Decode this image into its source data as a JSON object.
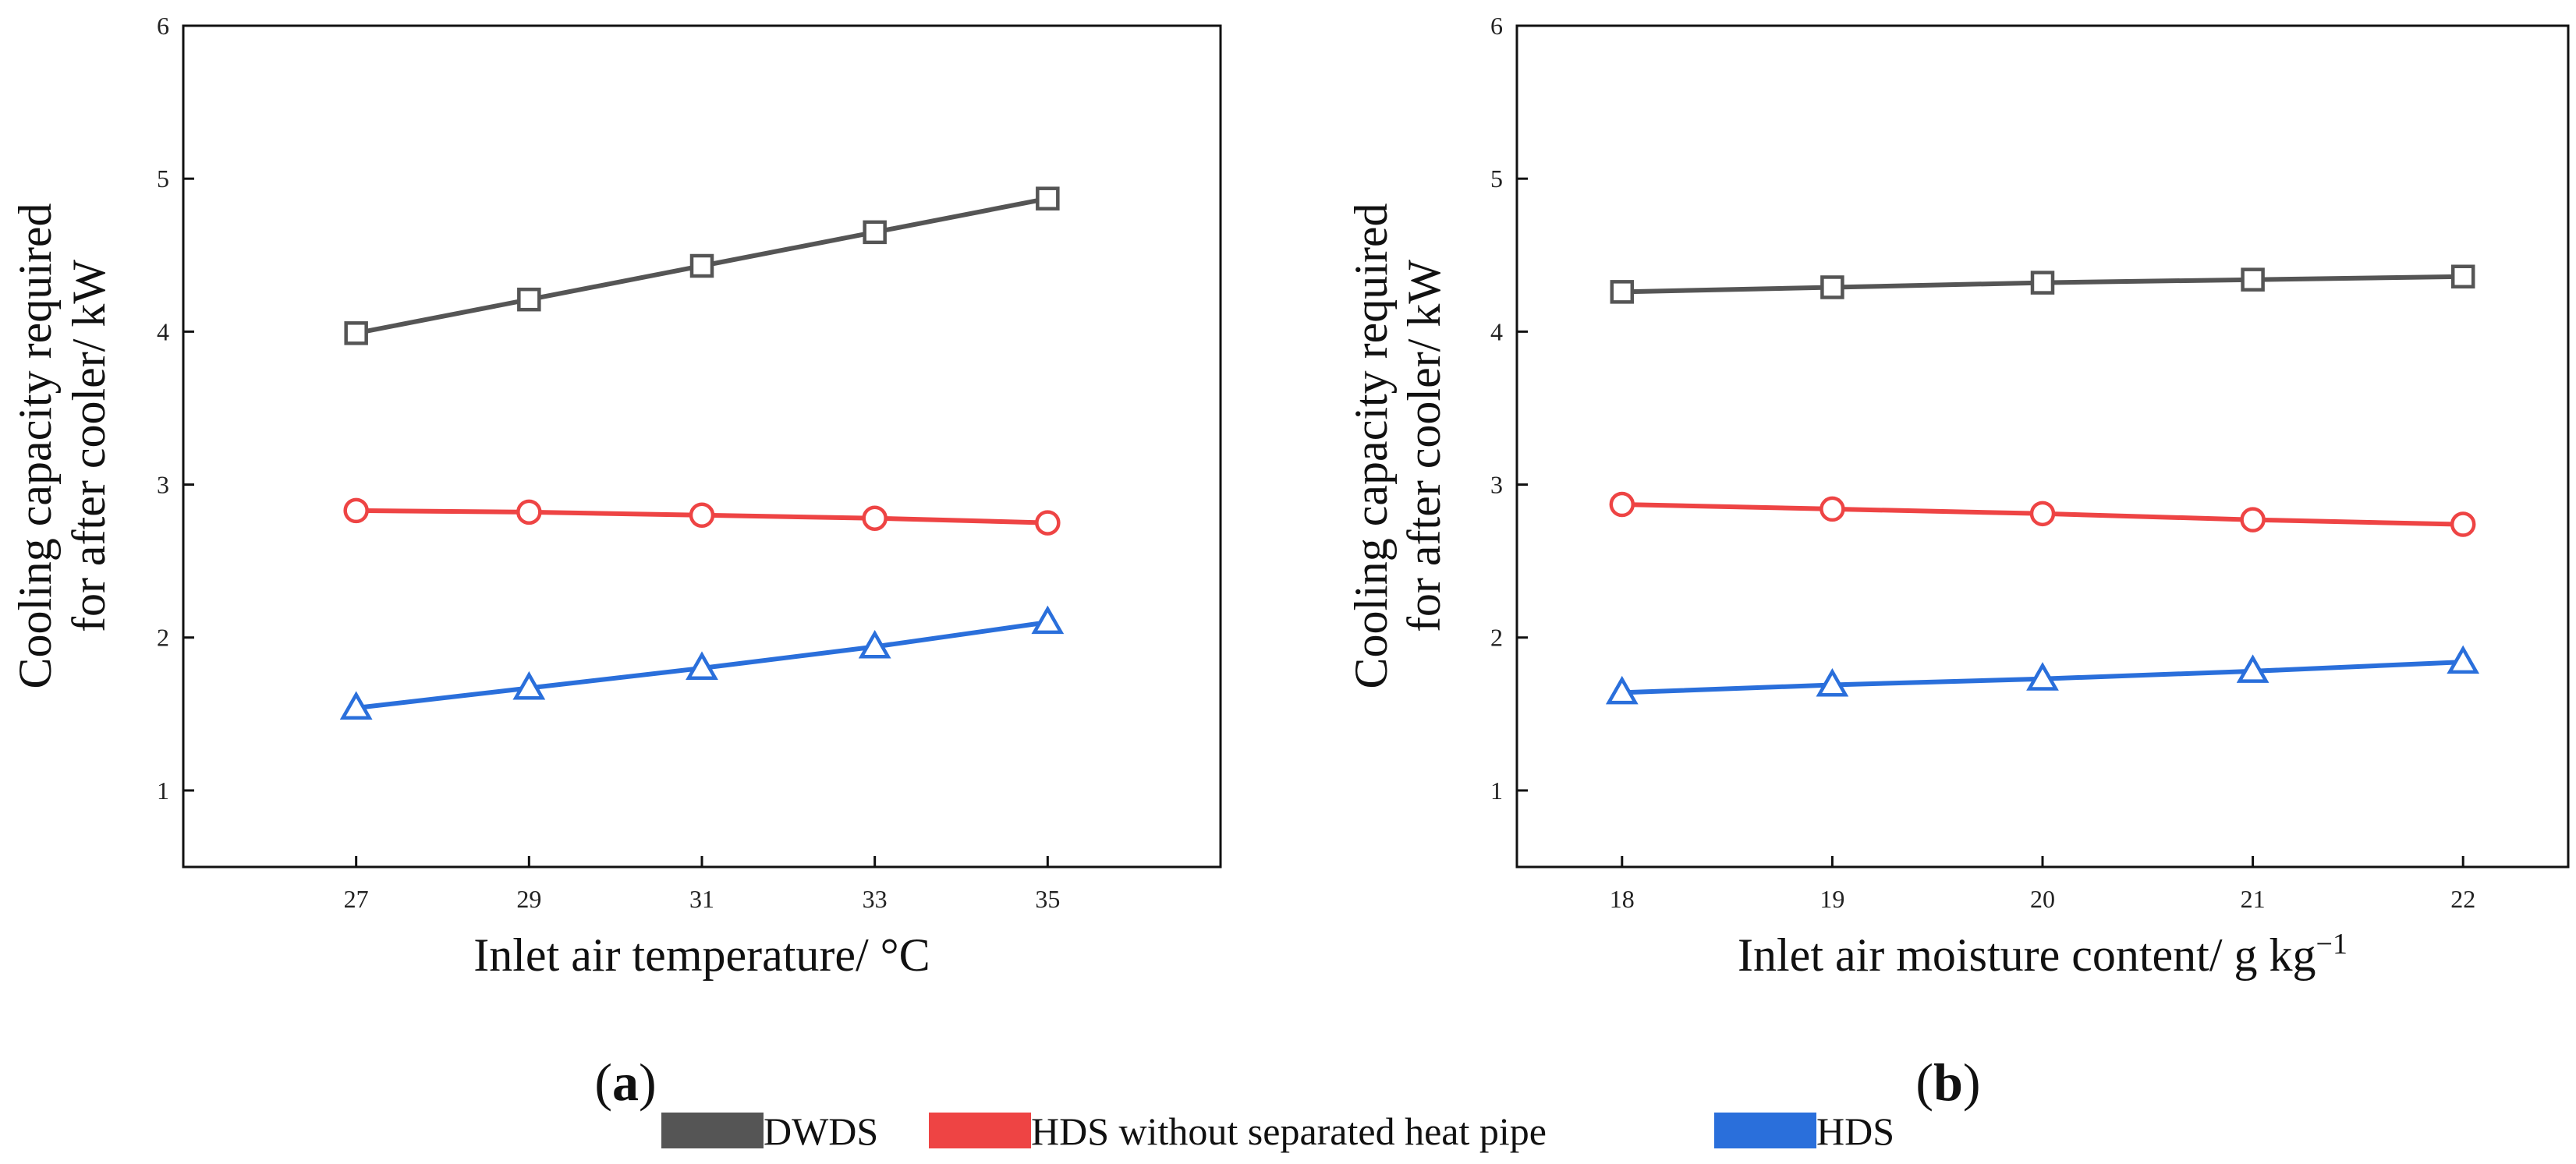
{
  "colors": {
    "DWDS": "#555555",
    "HDS without separated heat pipe": "#ee4444",
    "HDS": "#2a6fdb",
    "axis": "#111111"
  },
  "chart_data": [
    {
      "type": "line",
      "panel": "a",
      "xlabel": "Inlet air temperature/ °C",
      "ylabel_lines": [
        "Cooling capacity required",
        "for after cooler/ kW"
      ],
      "x": [
        27,
        29,
        31,
        33,
        35
      ],
      "xlim": [
        25,
        37
      ],
      "ylim": [
        0.5,
        6
      ],
      "xticks": [
        27,
        29,
        31,
        33,
        35
      ],
      "yticks": [
        1,
        2,
        3,
        4,
        5,
        6
      ],
      "series": [
        {
          "name": "DWDS",
          "marker": "square",
          "values": [
            3.99,
            4.21,
            4.43,
            4.65,
            4.87
          ]
        },
        {
          "name": "HDS without separated heat pipe",
          "marker": "circle",
          "values": [
            2.83,
            2.82,
            2.8,
            2.78,
            2.75
          ]
        },
        {
          "name": "HDS",
          "marker": "triangle",
          "values": [
            1.54,
            1.67,
            1.8,
            1.94,
            2.1
          ]
        }
      ]
    },
    {
      "type": "line",
      "panel": "b",
      "xlabel": "Inlet air moisture content/ g kg",
      "xlabel_sup": "−1",
      "ylabel_lines": [
        "Cooling capacity required",
        "for after cooler/ kW"
      ],
      "x": [
        18,
        19,
        20,
        21,
        22
      ],
      "xlim": [
        17.5,
        22.5
      ],
      "ylim": [
        0.5,
        6
      ],
      "xticks": [
        18,
        19,
        20,
        21,
        22
      ],
      "yticks": [
        1,
        2,
        3,
        4,
        5,
        6
      ],
      "series": [
        {
          "name": "DWDS",
          "marker": "square",
          "values": [
            4.26,
            4.29,
            4.32,
            4.34,
            4.36
          ]
        },
        {
          "name": "HDS without separated heat pipe",
          "marker": "circle",
          "values": [
            2.87,
            2.84,
            2.81,
            2.77,
            2.74
          ]
        },
        {
          "name": "HDS",
          "marker": "triangle",
          "values": [
            1.64,
            1.69,
            1.73,
            1.78,
            1.84
          ]
        }
      ]
    }
  ],
  "panels": {
    "a": {
      "paren_open": "(",
      "letter": "a",
      "paren_close": ")"
    },
    "b": {
      "paren_open": "(",
      "letter": "b",
      "paren_close": ")"
    }
  },
  "legend": [
    {
      "label": "DWDS",
      "color_key": "DWDS"
    },
    {
      "label": "HDS without separated heat pipe",
      "color_key": "HDS without separated heat pipe"
    },
    {
      "label": "HDS",
      "color_key": "HDS"
    }
  ]
}
